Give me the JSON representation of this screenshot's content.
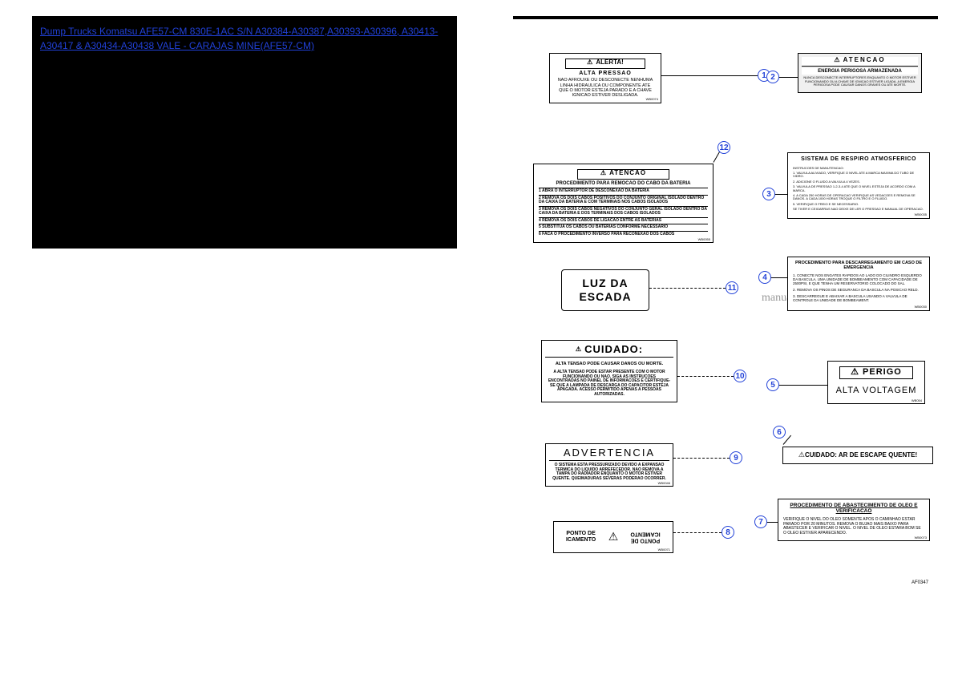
{
  "link_text": "Dump Trucks Komatsu AFE57-CM 830E-1AC S/N A30384-A30387,A30393-A30396, A30413-A30417 & A30434-A30438 VALE - CARAJAS MINE(AFE57-CM)",
  "watermark": "manuals-komatsu.com",
  "part_ref": "AF0347",
  "plates": {
    "p1": {
      "head": "ALERTA!",
      "head_icon": "!",
      "sub": "ALTA PRESSAO",
      "body": "NAO AFROUXE OU DESCONECTE NENHUMA LINHA HIDRAULICA OU COMPONENTE ATE QUE O MOTOR ESTEJA PARADO E A CHAVE IGNICAO ESTIVER DESLIGADA.",
      "pn": "WB0074"
    },
    "p2": {
      "head": "ATENCAO",
      "sub": "ENERGIA PERIGOSA ARMAZENADA",
      "body": "NUNCA DESCONECTE INTERRUPTORES ENQUANTO O MOTOR ESTIVER FUNCIONANDO OU A CHAVE DE IGNICAO ESTIVER LIGADA. A ENERGIA PERIGOSA PODE CAUSAR DANOS GRAVES OU ATE MORTE."
    },
    "p3": {
      "head": "SISTEMA DE RESPIRO ATMOSFERICO",
      "body_lines": [
        "INSTRUCOES DE MANUTENCAO:",
        "1. VALVULA ALIVIADO, VERIFIQUE O NIVEL ATE A MARCA MAXIMA DO TUBO DE VIDRO.",
        "2. ADICIONE O FLUIDO A VALVULA 4 VEZES.",
        "3. VALVULA DE PRESSAO 1-2-3-4 ATE QUE O NIVEL ESTEJA DE ACORDO COM A MARCA.",
        "4. A CADA 250 HORAS DE OPERACAO VERIFIQUE AS VEDACOES E REMOVA SE DANOS. A CADA 1000 HORAS TROQUE O FILTRO E O FLUIDO.",
        "5. VERIFIQUE O FREIO E SE NECESSARIO.",
        "SE TIVER E CEIGARRAS NAO DEIXE DE LER O PRESSAO E MANUAL DE OPERACAO."
      ],
      "pn": "WB0035"
    },
    "p4": {
      "head": "PROCEDIMENTO PARA DESCARREGAMENTO EM CASO DE EMERGENCIA",
      "body_lines": [
        "1. CONECTE NOS ENGATES RAPIDOS AO LADO DO CILINDRO ESQUERDO DA BASCULA, UMA UNIDADE DE BOMBEAMENTO COM CAPACIDADE DE 2500PSI, E QUE TENHA UM RESERVATORIO COLOCADO DO SAL.",
        "2. REMOVA OS PINOS DE SEGURANCA DA BASCULA NA POSICAO RELD.",
        "3. DESCARREGUE E ABAIXAR A BASCULA USANDO A VALVULA DE CONTROLE DA UNIDADE DE BOMBEAMENT."
      ],
      "pn": "WB0030"
    },
    "p5": {
      "head": "PERIGO",
      "big": "ALTA VOLTAGEM",
      "pn": "WB054"
    },
    "p6": {
      "text": "CUIDADO: AR DE ESCAPE QUENTE!"
    },
    "p7": {
      "head": "PROCEDIMENTO DE ABASTECIMENTO DE OLEO E VERIFICACAO",
      "body": "VERIFIQUE O NIVEL DO OLEO SOMENTE APOS O CAMINHAO ESTAR PARADO POR 20 MINUTOS. REMOVA O BUJAO MAIS BAIXO PARA ABASTECER E VERIFICAR O NIVEL. O NIVEL DE OLEO ESTARA BOM SE O OLEO ESTIVER APARECENDO.",
      "pn": "WB0073"
    },
    "p8": {
      "text1": "PONTO DE ICAMENTO",
      "text2": "PONTO DE ICAMENTO",
      "pn": "WB0071"
    },
    "p9": {
      "head": "ADVERTENCIA",
      "body": "O SISTEMA ESTA PRESSURIZADO DEVIDO A EXPANSAO TERMICA DO LIQUIDO ARREFECEDOR. NAO REMOVA A TAMPA DO RADIADOR ENQUANTO O MOTOR ESTIVER QUENTE. QUEIMADURAS SEVERAS PODERAO OCORRER.",
      "pn": "WB0046"
    },
    "p10": {
      "head": "CUIDADO:",
      "sub": "ALTA TENSAO PODE CAUSAR DANOS OU MORTE.",
      "body": "A ALTA TENSAO PODE ESTAR PRESENTE COM O MOTOR FUNCIONANDO OU NAO. SIGA AS INSTRUCOES ENCONTRADAS NO PAINEL DE INFORMACOES E CERTIFIQUE-SE QUE A LAMPADA DE DESCARGA DO CAPACITOR ESTEJA APAGADA. ACESSO PERMITIDO APENAS A PESSOAS AUTORIZADAS."
    },
    "p11": {
      "big": "LUZ DA ESCADA"
    },
    "p12": {
      "head": "ATENCAO",
      "sub": "PROCEDIMENTO PARA REMOCAO DO CABO DA BATERIA",
      "body_lines": [
        "1 ABRA O INTERRUPTOR DE DESCONEXAO DA BATERIA",
        "2 REMOVA OS DOIS CABOS POSITIVOS DO CONJUNTO ORIGINAL ISOLADO DENTRO DA CAIXA DA BATERIA E COM TERMINAIS NOS CABOS ISOLADOS",
        "3 REMOVA OS DOIS CABOS NEGATIVOS DO CONJUNTO GERAL ISOLADO DENTRO DA CAIXA DA BATERIA E DOS TERMINAIS DOS CABOS ISOLADOS",
        "4 REMOVA OS DOIS CABOS DE LIGACAO ENTRE AS BATERIAS",
        "5 SUBSTITUA OS CABOS OU BATERIAS CONFORME NECESSARIO",
        "6 FACA O PROCEDIMENTO INVERSO PARA RECONEXAO DOS CABOS"
      ],
      "pn": "WB0055"
    }
  },
  "nums": {
    "1": "1",
    "2": "2",
    "3": "3",
    "4": "4",
    "5": "5",
    "6": "6",
    "7": "7",
    "8": "8",
    "9": "9",
    "10": "10",
    "11": "11",
    "12": "12"
  }
}
